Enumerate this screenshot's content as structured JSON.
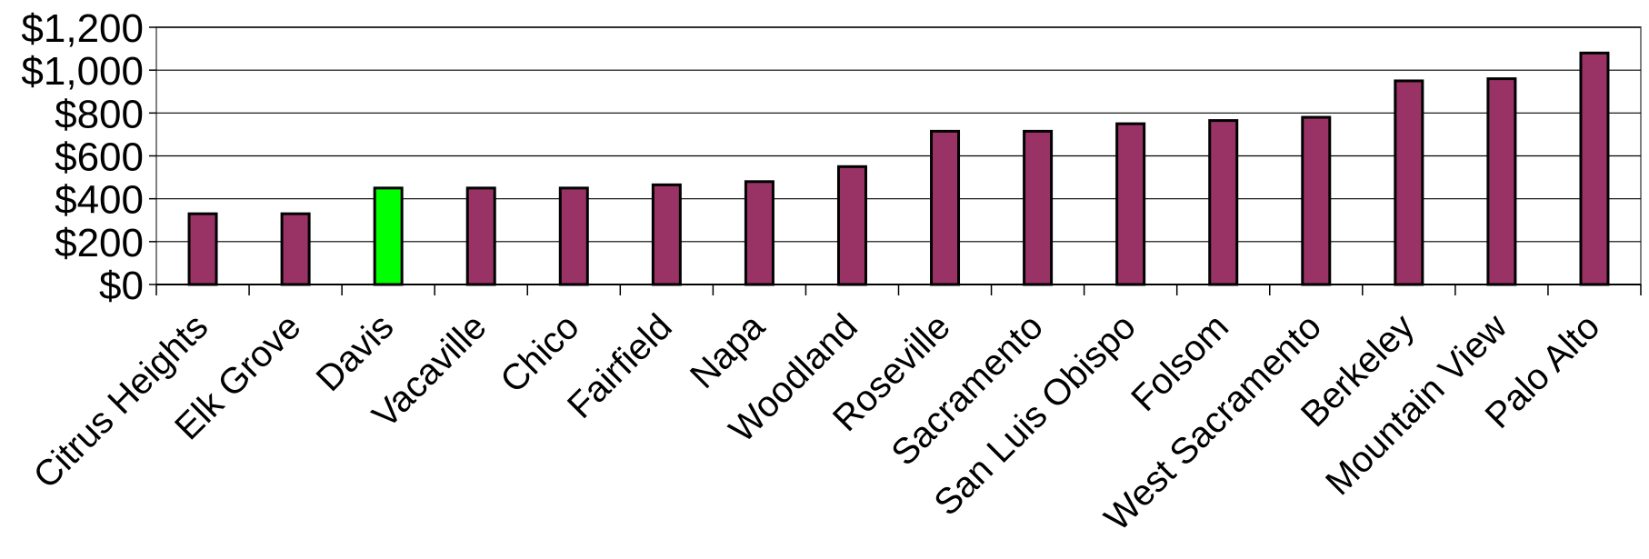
{
  "chart_data": {
    "type": "bar",
    "title": "",
    "xlabel": "",
    "ylabel": "",
    "ylim": [
      0,
      1200
    ],
    "yticks": [
      0,
      200,
      400,
      600,
      800,
      1000,
      1200
    ],
    "ytick_labels": [
      "$0",
      "$200",
      "$400",
      "$600",
      "$800",
      "$1,000",
      "$1,200"
    ],
    "grid": true,
    "legend": "none",
    "categories": [
      "Citrus Heights",
      "Elk Grove",
      "Davis",
      "Vacaville",
      "Chico",
      "Fairfield",
      "Napa",
      "Woodland",
      "Roseville",
      "Sacramento",
      "San Luis Obispo",
      "Folsom",
      "West Sacramento",
      "Berkeley",
      "Mountain View",
      "Palo Alto"
    ],
    "values": [
      330,
      330,
      450,
      450,
      450,
      465,
      480,
      550,
      715,
      715,
      750,
      765,
      780,
      950,
      960,
      1080
    ],
    "bar_color": "#993366",
    "highlight_category": "Davis",
    "highlight_color": "#00ff00"
  }
}
